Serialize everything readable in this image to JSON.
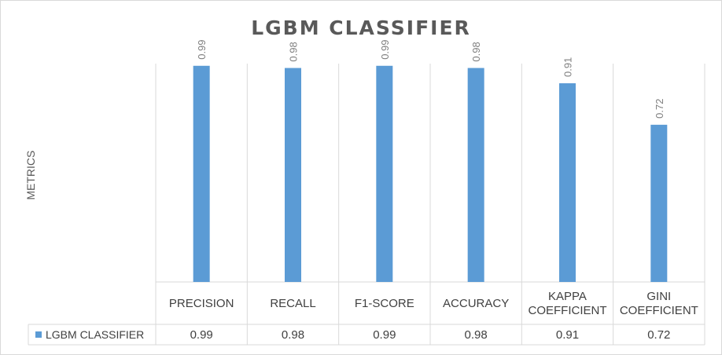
{
  "chart_data": {
    "type": "bar",
    "title": "LGBM CLASSIFIER",
    "xlabel": "",
    "ylabel": "METRICS",
    "ylim": [
      0,
      1
    ],
    "grid": "vertical category separators",
    "legend": "data table row (left)",
    "categories": [
      [
        "PRECISION"
      ],
      [
        "RECALL"
      ],
      [
        "F1-SCORE"
      ],
      [
        "ACCURACY"
      ],
      [
        "KAPPA",
        "COEFFICIENT"
      ],
      [
        "GINI",
        "COEFFICIENT"
      ]
    ],
    "series": [
      {
        "name": "LGBM CLASSIFIER",
        "values": [
          0.99,
          0.98,
          0.99,
          0.98,
          0.91,
          0.72
        ],
        "labels": [
          "0.99",
          "0.98",
          "0.99",
          "0.98",
          "0.91",
          "0.72"
        ],
        "color": "#5b9bd5"
      }
    ]
  }
}
